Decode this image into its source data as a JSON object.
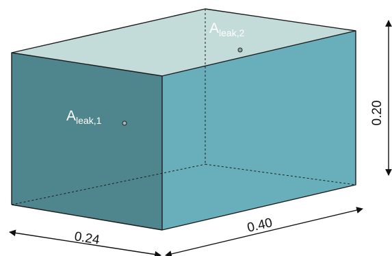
{
  "colors": {
    "front_face": "#4f858d",
    "right_face": "#69afbb",
    "top_face": "#c4dcd9",
    "edge": "#1c1c1c",
    "leak_label": "#ffffff",
    "dimension_label": "#111111"
  },
  "leaks": [
    {
      "base": "A",
      "subscript": "leak,1"
    },
    {
      "base": "A",
      "subscript": "leak,2"
    }
  ],
  "dimensions": {
    "depth": "0.24",
    "length": "0.40",
    "height": "0.20"
  }
}
